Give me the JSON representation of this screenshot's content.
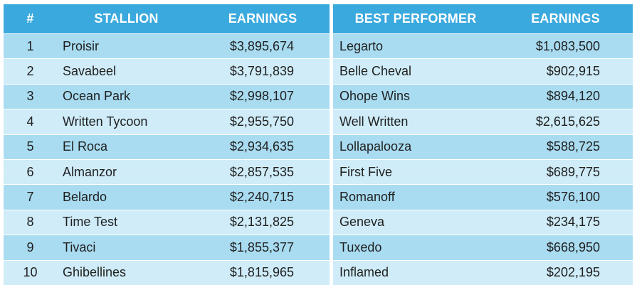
{
  "left_table": {
    "headers": {
      "rank": "#",
      "stallion": "STALLION",
      "earnings": "EARNINGS"
    },
    "rows": [
      {
        "rank": "1",
        "stallion": "Proisir",
        "earnings": "$3,895,674"
      },
      {
        "rank": "2",
        "stallion": "Savabeel",
        "earnings": "$3,791,839"
      },
      {
        "rank": "3",
        "stallion": "Ocean Park",
        "earnings": "$2,998,107"
      },
      {
        "rank": "4",
        "stallion": "Written Tycoon",
        "earnings": "$2,955,750"
      },
      {
        "rank": "5",
        "stallion": "El Roca",
        "earnings": "$2,934,635"
      },
      {
        "rank": "6",
        "stallion": "Almanzor",
        "earnings": "$2,857,535"
      },
      {
        "rank": "7",
        "stallion": "Belardo",
        "earnings": "$2,240,715"
      },
      {
        "rank": "8",
        "stallion": "Time Test",
        "earnings": "$2,131,825"
      },
      {
        "rank": "9",
        "stallion": "Tivaci",
        "earnings": "$1,855,377"
      },
      {
        "rank": "10",
        "stallion": "Ghibellines",
        "earnings": "$1,815,965"
      }
    ]
  },
  "right_table": {
    "headers": {
      "best_performer": "BEST PERFORMER",
      "earnings": "EARNINGS"
    },
    "rows": [
      {
        "best_performer": "Legarto",
        "earnings": "$1,083,500"
      },
      {
        "best_performer": "Belle Cheval",
        "earnings": "$902,915"
      },
      {
        "best_performer": "Ohope Wins",
        "earnings": "$894,120"
      },
      {
        "best_performer": "Well Written",
        "earnings": "$2,615,625"
      },
      {
        "best_performer": "Lollapalooza",
        "earnings": "$588,725"
      },
      {
        "best_performer": "First Five",
        "earnings": "$689,775"
      },
      {
        "best_performer": "Romanoff",
        "earnings": "$576,100"
      },
      {
        "best_performer": "Geneva",
        "earnings": "$234,175"
      },
      {
        "best_performer": "Tuxedo",
        "earnings": "$668,950"
      },
      {
        "best_performer": "Inflamed",
        "earnings": "$202,195"
      }
    ]
  },
  "colors": {
    "header_bg": "#3aa9de",
    "row_odd": "#a9dcf1",
    "row_even": "#cfecf8"
  }
}
